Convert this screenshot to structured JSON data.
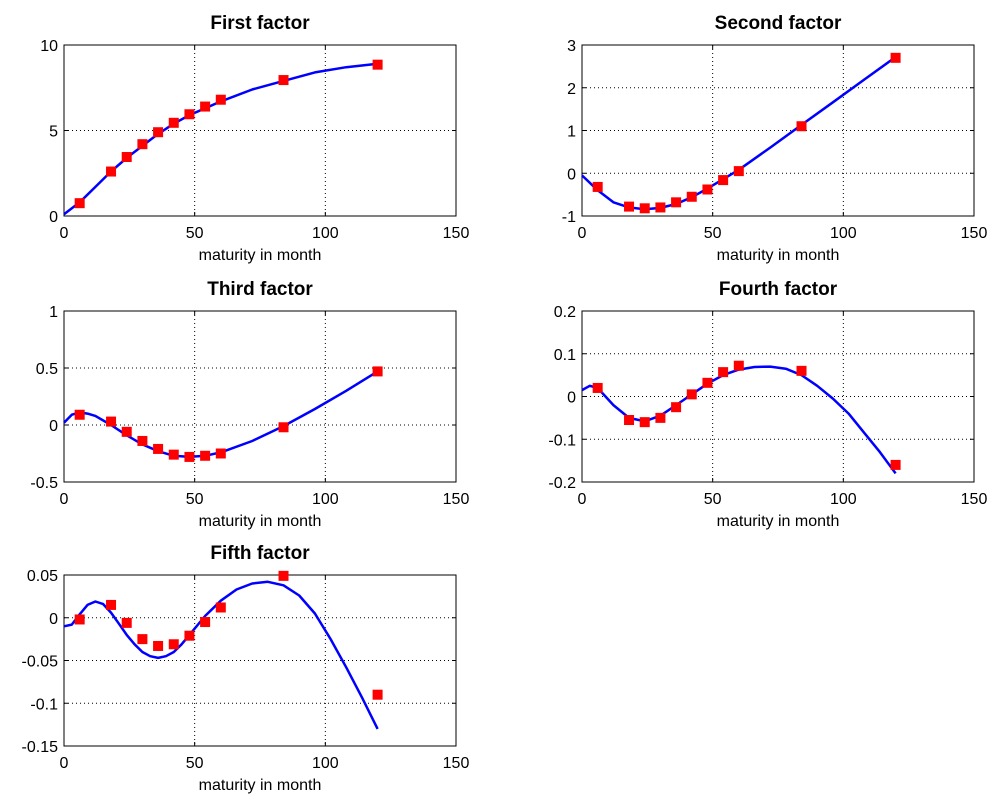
{
  "chart_data": [
    {
      "type": "line",
      "title": "First factor",
      "xlabel": "maturity in month",
      "ylabel": "",
      "xlim": [
        0,
        150
      ],
      "ylim": [
        0,
        10
      ],
      "xticks": [
        "0",
        "50",
        "100",
        "150"
      ],
      "yticks": [
        "0",
        "5",
        "10"
      ],
      "grid": true,
      "series": [
        {
          "style": "line",
          "x": [
            0,
            6,
            12,
            18,
            24,
            30,
            36,
            42,
            48,
            54,
            60,
            72,
            84,
            96,
            108,
            120
          ],
          "y": [
            0.1,
            0.8,
            1.7,
            2.6,
            3.4,
            4.1,
            4.8,
            5.4,
            5.9,
            6.3,
            6.7,
            7.4,
            7.9,
            8.4,
            8.7,
            8.9
          ]
        },
        {
          "style": "markers",
          "x": [
            6,
            18,
            24,
            30,
            36,
            42,
            48,
            54,
            60,
            84,
            120
          ],
          "y": [
            0.75,
            2.6,
            3.45,
            4.2,
            4.9,
            5.45,
            5.95,
            6.4,
            6.8,
            7.95,
            8.85
          ]
        }
      ]
    },
    {
      "type": "line",
      "title": "Second factor",
      "xlabel": "maturity in month",
      "ylabel": "",
      "xlim": [
        0,
        150
      ],
      "ylim": [
        -1,
        3
      ],
      "xticks": [
        "0",
        "50",
        "100",
        "150"
      ],
      "yticks": [
        "-1",
        "0",
        "1",
        "2",
        "3"
      ],
      "grid": true,
      "series": [
        {
          "style": "line",
          "x": [
            0,
            6,
            12,
            18,
            24,
            30,
            36,
            42,
            48,
            54,
            60,
            72,
            84,
            96,
            108,
            120
          ],
          "y": [
            -0.05,
            -0.4,
            -0.68,
            -0.8,
            -0.84,
            -0.81,
            -0.72,
            -0.56,
            -0.36,
            -0.14,
            0.08,
            0.6,
            1.13,
            1.66,
            2.19,
            2.72
          ]
        },
        {
          "style": "markers",
          "x": [
            6,
            18,
            24,
            30,
            36,
            42,
            48,
            54,
            60,
            84,
            120
          ],
          "y": [
            -0.32,
            -0.78,
            -0.82,
            -0.8,
            -0.68,
            -0.55,
            -0.38,
            -0.16,
            0.05,
            1.1,
            2.7
          ]
        }
      ]
    },
    {
      "type": "line",
      "title": "Third factor",
      "xlabel": "maturity in month",
      "ylabel": "",
      "xlim": [
        0,
        150
      ],
      "ylim": [
        -0.5,
        1
      ],
      "xticks": [
        "0",
        "50",
        "100",
        "150"
      ],
      "yticks": [
        "-0.5",
        "0",
        "0.5",
        "1"
      ],
      "grid": true,
      "series": [
        {
          "style": "line",
          "x": [
            0,
            3,
            6,
            9,
            12,
            18,
            24,
            30,
            36,
            42,
            48,
            54,
            60,
            72,
            84,
            96,
            108,
            120
          ],
          "y": [
            0.02,
            0.09,
            0.11,
            0.1,
            0.08,
            0.0,
            -0.09,
            -0.17,
            -0.23,
            -0.27,
            -0.28,
            -0.27,
            -0.24,
            -0.14,
            -0.01,
            0.14,
            0.3,
            0.47
          ]
        },
        {
          "style": "markers",
          "x": [
            6,
            18,
            24,
            30,
            36,
            42,
            48,
            54,
            60,
            84,
            120
          ],
          "y": [
            0.09,
            0.03,
            -0.06,
            -0.14,
            -0.21,
            -0.26,
            -0.28,
            -0.27,
            -0.25,
            -0.02,
            0.47
          ]
        }
      ]
    },
    {
      "type": "line",
      "title": "Fourth factor",
      "xlabel": "maturity in month",
      "ylabel": "",
      "xlim": [
        0,
        150
      ],
      "ylim": [
        -0.2,
        0.2
      ],
      "xticks": [
        "0",
        "50",
        "100",
        "150"
      ],
      "yticks": [
        "-0.2",
        "-0.1",
        "0",
        "0.1",
        "0.2"
      ],
      "grid": true,
      "series": [
        {
          "style": "line",
          "x": [
            0,
            3,
            6,
            9,
            12,
            18,
            24,
            30,
            36,
            42,
            48,
            54,
            60,
            66,
            72,
            78,
            84,
            90,
            96,
            102,
            108,
            114,
            120
          ],
          "y": [
            0.015,
            0.025,
            0.02,
            0.0,
            -0.02,
            -0.05,
            -0.058,
            -0.045,
            -0.02,
            0.005,
            0.03,
            0.05,
            0.063,
            0.069,
            0.07,
            0.065,
            0.05,
            0.025,
            -0.005,
            -0.04,
            -0.085,
            -0.13,
            -0.18
          ]
        },
        {
          "style": "markers",
          "x": [
            6,
            18,
            24,
            30,
            36,
            42,
            48,
            54,
            60,
            84,
            120
          ],
          "y": [
            0.02,
            -0.055,
            -0.06,
            -0.05,
            -0.025,
            0.005,
            0.032,
            0.057,
            0.072,
            0.06,
            -0.16
          ]
        }
      ]
    },
    {
      "type": "line",
      "title": "Fifth factor",
      "xlabel": "maturity in month",
      "ylabel": "",
      "xlim": [
        0,
        150
      ],
      "ylim": [
        -0.15,
        0.05
      ],
      "xticks": [
        "0",
        "50",
        "100",
        "150"
      ],
      "yticks": [
        "-0.15",
        "-0.1",
        "-0.05",
        "0",
        "0.05"
      ],
      "grid": true,
      "series": [
        {
          "style": "line",
          "x": [
            0,
            3,
            6,
            9,
            12,
            15,
            18,
            21,
            24,
            27,
            30,
            33,
            36,
            39,
            42,
            45,
            48,
            54,
            60,
            66,
            72,
            78,
            84,
            90,
            96,
            102,
            108,
            114,
            120
          ],
          "y": [
            -0.01,
            -0.008,
            0.004,
            0.015,
            0.019,
            0.016,
            0.006,
            -0.007,
            -0.02,
            -0.031,
            -0.04,
            -0.045,
            -0.047,
            -0.045,
            -0.04,
            -0.031,
            -0.02,
            0.002,
            0.02,
            0.033,
            0.04,
            0.042,
            0.038,
            0.026,
            0.005,
            -0.025,
            -0.058,
            -0.093,
            -0.13
          ]
        },
        {
          "style": "markers",
          "x": [
            6,
            18,
            24,
            30,
            36,
            42,
            48,
            54,
            60,
            84,
            120
          ],
          "y": [
            -0.002,
            0.015,
            -0.006,
            -0.025,
            -0.033,
            -0.031,
            -0.021,
            -0.005,
            0.012,
            0.049,
            -0.09
          ]
        }
      ]
    }
  ],
  "colors": {
    "line": "#0000ff",
    "marker": "#ff0000",
    "grid": "#000000",
    "axes": "#000000"
  }
}
